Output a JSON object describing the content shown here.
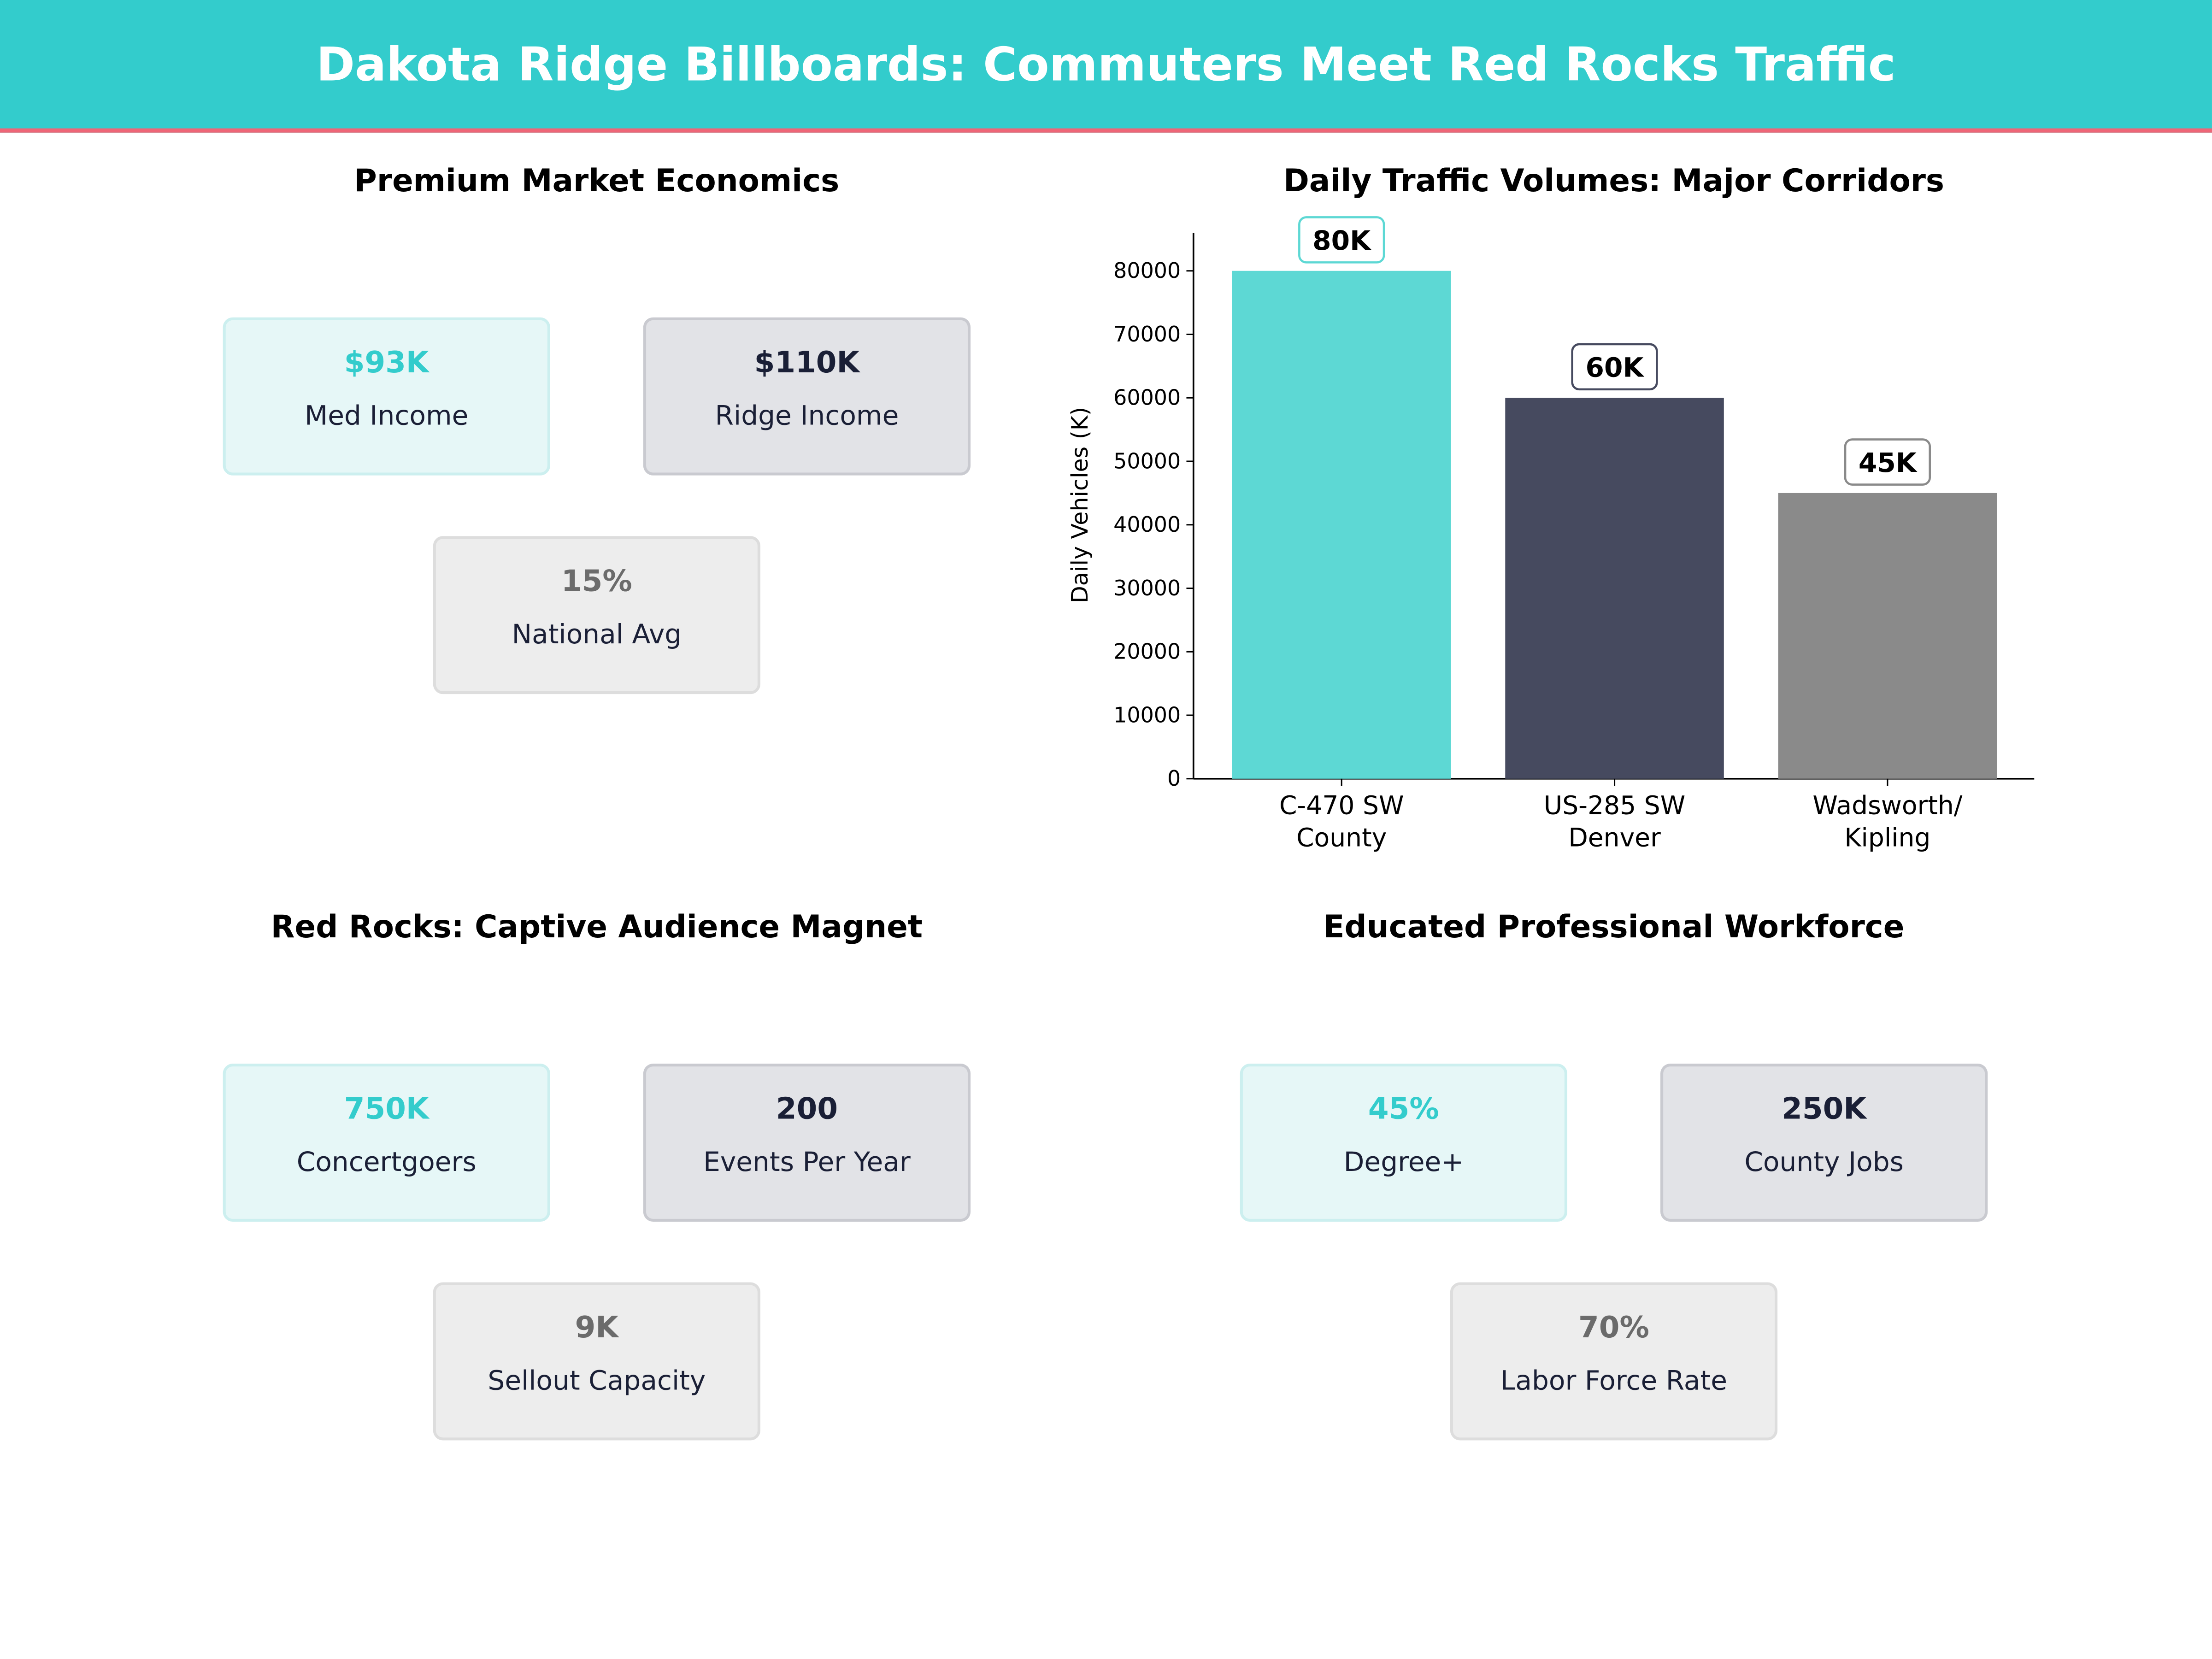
{
  "header": {
    "title": "Dakota Ridge Billboards: Commuters Meet Red Rocks Traffic"
  },
  "panels": {
    "economics": {
      "title": "Premium Market Economics",
      "cards": [
        {
          "value": "$93K",
          "label": "Med Income"
        },
        {
          "value": "$110K",
          "label": "Ridge Income"
        },
        {
          "value": "15%",
          "label": "National Avg"
        }
      ]
    },
    "redrocks": {
      "title": "Red Rocks: Captive Audience Magnet",
      "cards": [
        {
          "value": "750K",
          "label": "Concertgoers"
        },
        {
          "value": "200",
          "label": "Events Per Year"
        },
        {
          "value": "9K",
          "label": "Sellout Capacity"
        }
      ]
    },
    "workforce": {
      "title": "Educated Professional Workforce",
      "cards": [
        {
          "value": "45%",
          "label": "Degree+"
        },
        {
          "value": "250K",
          "label": "County Jobs"
        },
        {
          "value": "70%",
          "label": "Labor Force Rate"
        }
      ]
    }
  },
  "chart_data": {
    "type": "bar",
    "title": "Daily Traffic Volumes: Major Corridors",
    "categories": [
      [
        "C-470 SW",
        "County"
      ],
      [
        "US-285 SW",
        "Denver"
      ],
      [
        "Wadsworth/",
        "Kipling"
      ]
    ],
    "values": [
      80000,
      60000,
      45000
    ],
    "data_labels": [
      "80K",
      "60K",
      "45K"
    ],
    "colors": [
      "#5DD8D4",
      "#464A5F",
      "#8A8A8A"
    ],
    "label_border_colors": [
      "#5DD8D4",
      "#464A5F",
      "#8A8A8A"
    ],
    "xlabel": "",
    "ylabel": "Daily Vehicles (K)",
    "ylim": [
      0,
      86000
    ],
    "yticks": [
      0,
      10000,
      20000,
      30000,
      40000,
      50000,
      60000,
      70000,
      80000
    ],
    "grid": false
  }
}
